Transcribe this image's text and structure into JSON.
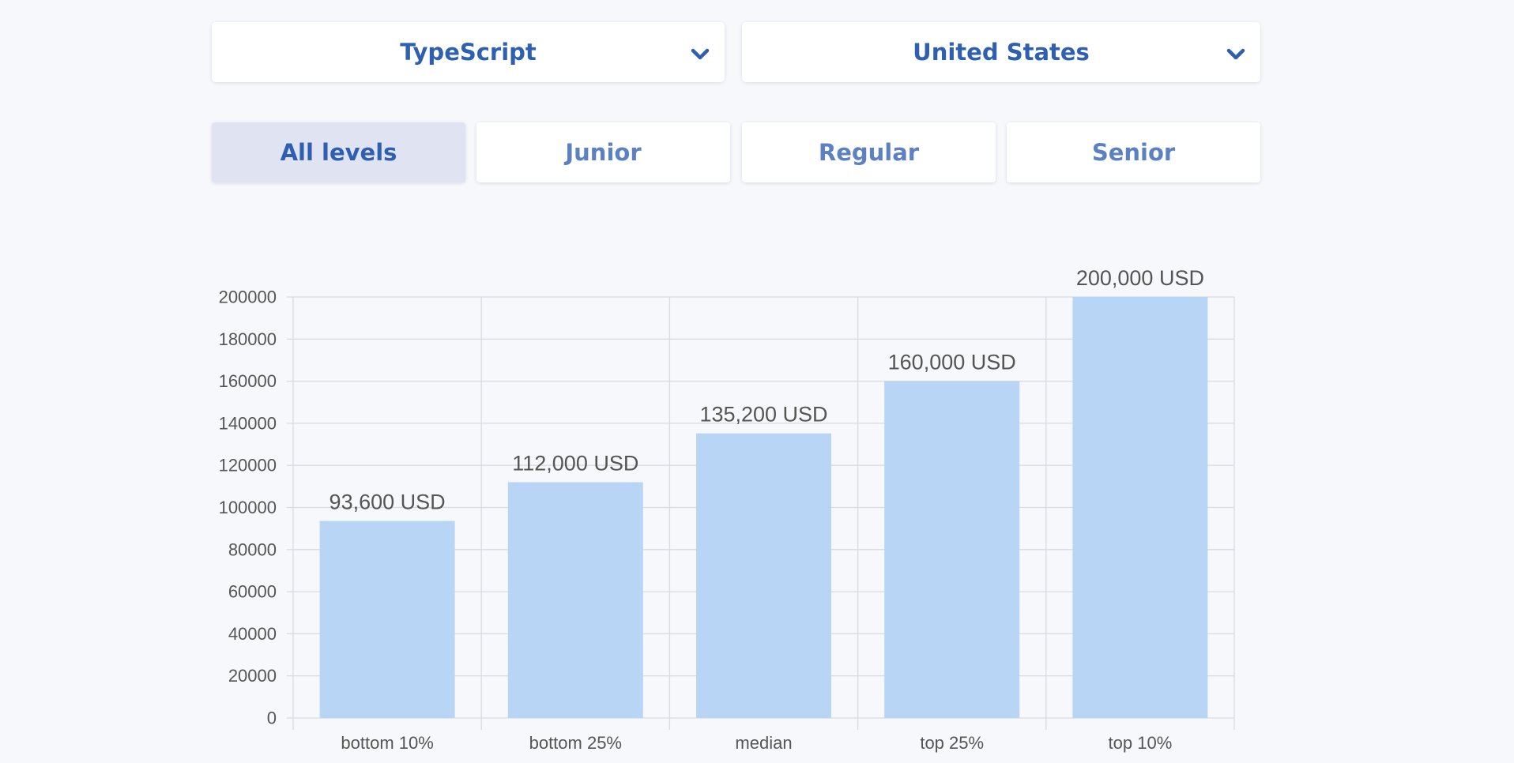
{
  "filters": {
    "language": "TypeScript",
    "country": "United States"
  },
  "levels": [
    "All levels",
    "Junior",
    "Regular",
    "Senior"
  ],
  "active_level": "All levels",
  "colors": {
    "accent": "#2e5fb0",
    "tab_text": "#5b81c4",
    "active_tab_bg": "#dfe3f2",
    "bar_fill": "#b9d5f5",
    "grid": "#d8dbe0",
    "axis_text": "#555555"
  },
  "icons": {
    "dropdown": "chevron-down-icon"
  },
  "chart_data": {
    "type": "bar",
    "categories": [
      "bottom 10%",
      "bottom 25%",
      "median",
      "top 25%",
      "top 10%"
    ],
    "values": [
      93600,
      112000,
      135200,
      160000,
      200000
    ],
    "data_labels": [
      "93,600 USD",
      "112,000 USD",
      "135,200 USD",
      "160,000 USD",
      "200,000 USD"
    ],
    "y_ticks": [
      "0",
      "20000",
      "40000",
      "60000",
      "80000",
      "100000",
      "120000",
      "140000",
      "160000",
      "180000",
      "200000"
    ],
    "ylim": [
      0,
      200000
    ],
    "title": "",
    "xlabel": "",
    "ylabel": "",
    "grid": true,
    "legend": "none"
  }
}
